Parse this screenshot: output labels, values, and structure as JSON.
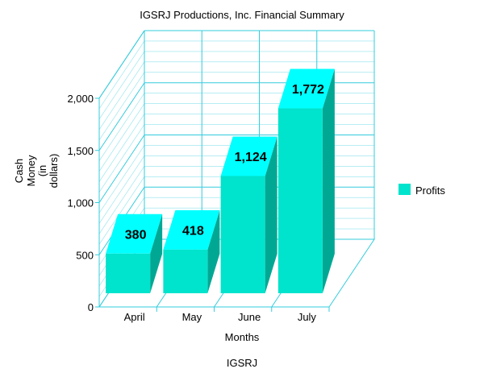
{
  "chart_data": {
    "type": "bar",
    "title": "IGSRJ Productions, Inc.  Financial Summary",
    "footer": "IGSRJ",
    "xlabel": "Months",
    "ylabel_lines": [
      "Cash",
      "Money",
      "(in",
      "dollars)"
    ],
    "categories": [
      "April",
      "May",
      "June",
      "July"
    ],
    "series": [
      {
        "name": "Profits",
        "values": [
          380,
          418,
          1124,
          1772
        ]
      }
    ],
    "value_labels": [
      "380",
      "418",
      "1,124",
      "1,772"
    ],
    "yticks": [
      0,
      500,
      1000,
      1500,
      2000
    ],
    "ytick_labels": [
      "0",
      "500",
      "1,000",
      "1,500",
      "2,000"
    ],
    "ylim": [
      0,
      2000
    ],
    "grid": true,
    "legend_position": "right",
    "colors": {
      "bar_front": "#00e3cc",
      "bar_top": "#00ffff",
      "bar_side": "#00a894",
      "grid": "#33ccdd",
      "legend_swatch": "#00e3cc"
    }
  }
}
